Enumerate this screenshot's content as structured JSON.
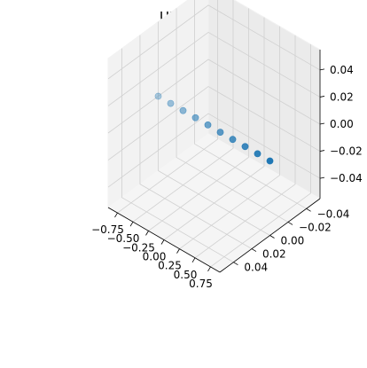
{
  "chart_data": {
    "type": "scatter",
    "projection": "3d",
    "title": "ULA",
    "xlabel": "",
    "ylabel": "",
    "zlabel": "",
    "grid": true,
    "legend": "none",
    "color": "#1f77b4",
    "x_ticks": [
      "−0.75",
      "−0.50",
      "−0.25",
      "0.00",
      "0.25",
      "0.50",
      "0.75"
    ],
    "y_ticks": [
      "−0.04",
      "−0.02",
      "0.00",
      "0.02",
      "0.04"
    ],
    "z_ticks": [
      "−0.04",
      "−0.02",
      "0.00",
      "0.02",
      "0.04"
    ],
    "xlim": [
      -0.9,
      0.9
    ],
    "ylim": [
      -0.055,
      0.055
    ],
    "zlim": [
      -0.055,
      0.055
    ],
    "points": {
      "x": [
        -0.9,
        -0.7,
        -0.5,
        -0.3,
        -0.1,
        0.1,
        0.3,
        0.5,
        0.7,
        0.9
      ],
      "y": [
        0,
        0,
        0,
        0,
        0,
        0,
        0,
        0,
        0,
        0
      ],
      "z": [
        0,
        0,
        0,
        0,
        0,
        0,
        0,
        0,
        0,
        0
      ]
    }
  }
}
